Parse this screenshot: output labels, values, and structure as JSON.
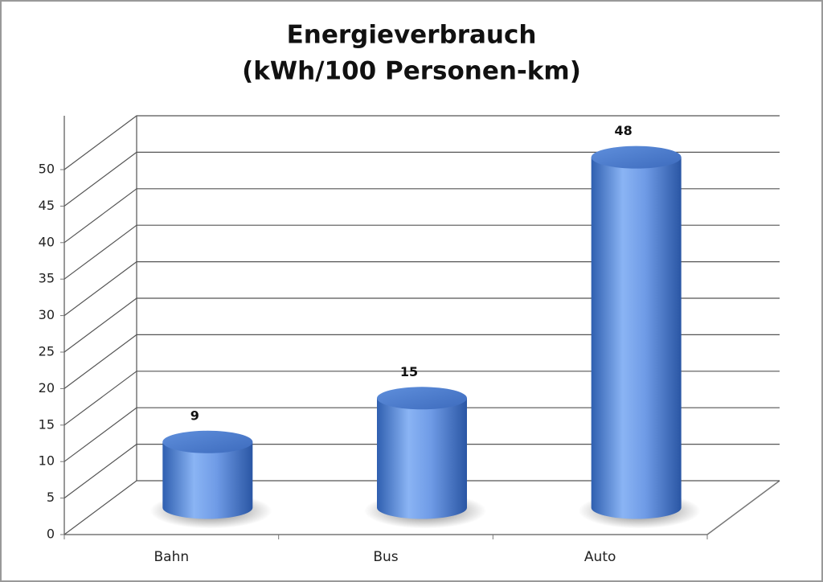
{
  "chart_data": {
    "type": "bar3d",
    "title": [
      "Energieverbrauch",
      "(kWh/100 Personen-km)"
    ],
    "categories": [
      "Bahn",
      "Bus",
      "Auto"
    ],
    "values": [
      9,
      15,
      48
    ],
    "color": "#4f7fd0",
    "ylim": [
      0,
      50
    ],
    "yticks": [
      0,
      5,
      10,
      15,
      20,
      25,
      30,
      35,
      40,
      45,
      50
    ],
    "grid": true
  }
}
